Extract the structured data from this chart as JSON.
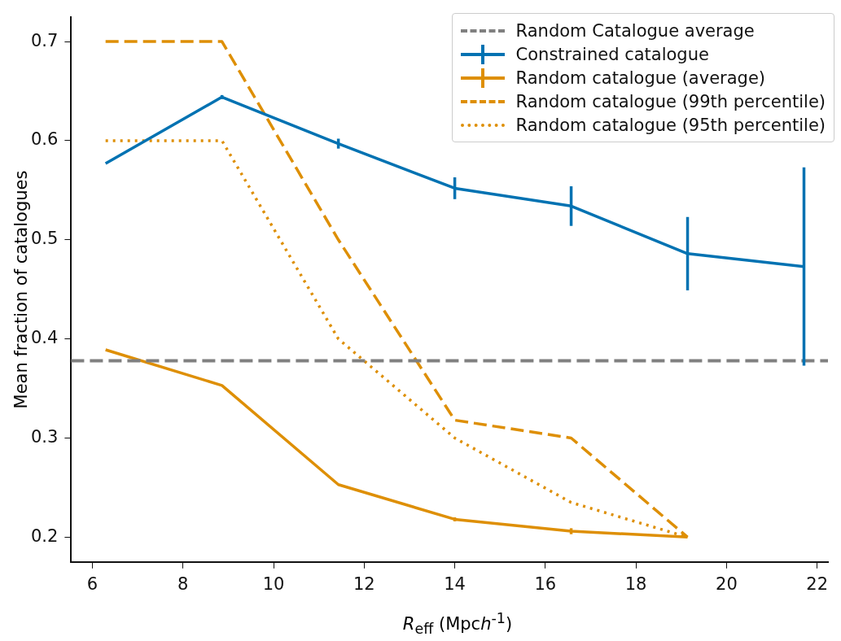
{
  "chart_data": {
    "type": "line",
    "xlabel": "R$_{eff}$ (Mpch$^{-1}$)",
    "ylabel": "Mean fraction of catalogues",
    "x": [
      6.29,
      8.86,
      11.43,
      14.0,
      16.57,
      19.14,
      21.71
    ],
    "series": [
      {
        "name": "Constrained catalogue",
        "color": "#0072b2",
        "values": [
          0.577,
          0.644,
          0.597,
          0.552,
          0.534,
          0.486,
          0.473
        ],
        "errors": [
          null,
          0.002,
          0.005,
          0.011,
          0.02,
          0.037,
          0.1
        ]
      },
      {
        "name": "Random catalogue (average)",
        "color": "#de8f05",
        "values": [
          0.389,
          0.353,
          0.253,
          0.218,
          0.206,
          0.2,
          null
        ],
        "errors": [
          null,
          null,
          null,
          0.002,
          0.003,
          null,
          null
        ]
      },
      {
        "name": "Random catalogue (99th percentile)",
        "color": "#de8f05",
        "line_style": "dashed",
        "values": [
          0.7,
          0.7,
          0.5,
          0.318,
          0.3,
          0.2,
          null
        ]
      },
      {
        "name": "Random catalogue (95th percentile)",
        "color": "#de8f05",
        "line_style": "dotted",
        "values": [
          0.6,
          0.6,
          0.4,
          0.3,
          0.235,
          0.2,
          null
        ]
      }
    ],
    "ref_lines": [
      {
        "axis": "y",
        "value": 0.378,
        "label": "Random Catalogue average",
        "color": "#808080",
        "line_style": "dashed"
      }
    ],
    "xlim": [
      5.53,
      22.24
    ],
    "ylim": [
      0.175,
      0.725
    ],
    "xticks": [
      6,
      8,
      10,
      12,
      14,
      16,
      18,
      20,
      22
    ],
    "yticks": [
      0.2,
      0.3,
      0.4,
      0.5,
      0.6,
      0.7
    ],
    "grid": false,
    "legend": "top right",
    "marker": "none"
  }
}
